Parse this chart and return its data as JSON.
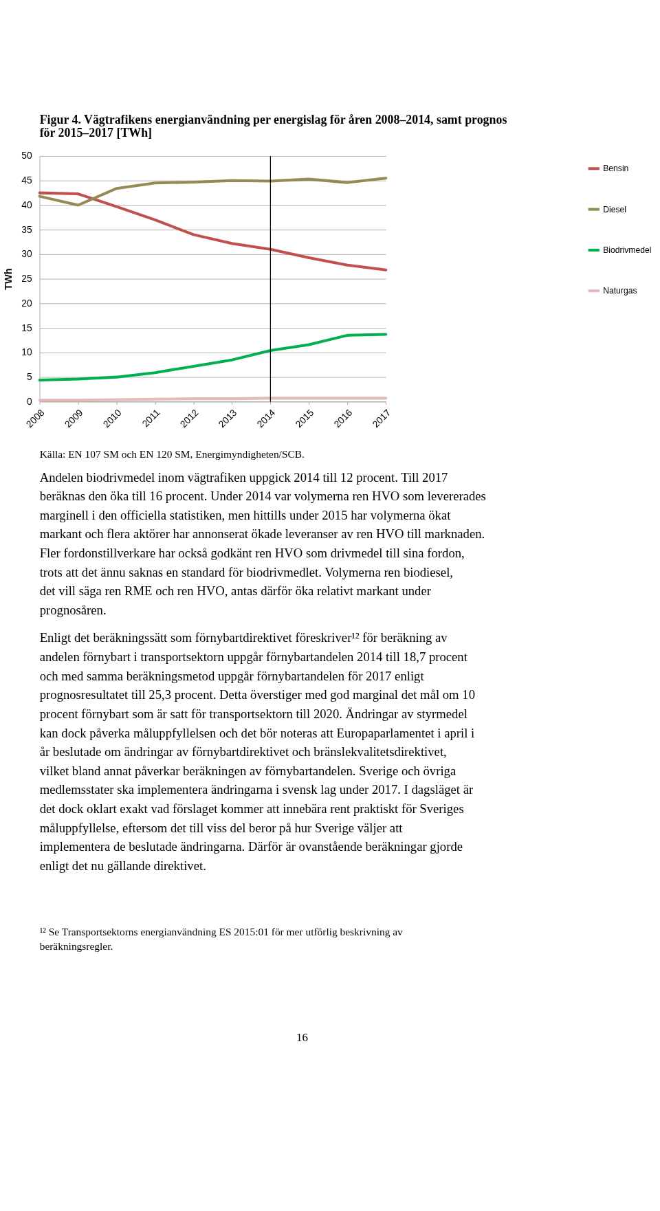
{
  "chart_data": {
    "type": "line",
    "title": "Figur 4. Vägtrafikens energianvändning per energislag för åren 2008–2014, samt prognos för 2015–2017 [TWh]",
    "ylabel": "TWh",
    "categories": [
      "2008",
      "2009",
      "2010",
      "2011",
      "2012",
      "2013",
      "2014",
      "2015",
      "2016",
      "2017"
    ],
    "series": [
      {
        "name": "Bensin",
        "color": "#c0504d",
        "values": [
          42.5,
          42.3,
          39.7,
          37.0,
          34.0,
          32.2,
          31.0,
          29.3,
          27.8,
          26.8
        ]
      },
      {
        "name": "Diesel",
        "color": "#948a54",
        "values": [
          41.8,
          40.0,
          43.4,
          44.5,
          44.7,
          45.0,
          44.9,
          45.3,
          44.6,
          45.5
        ]
      },
      {
        "name": "Biodrivmedel",
        "color": "#00b050",
        "values": [
          4.4,
          4.6,
          5.0,
          5.9,
          7.2,
          8.5,
          10.4,
          11.6,
          13.5,
          13.7
        ]
      },
      {
        "name": "Naturgas",
        "color": "#e6b9b8",
        "values": [
          0.3,
          0.3,
          0.4,
          0.5,
          0.6,
          0.6,
          0.7,
          0.7,
          0.7,
          0.7
        ]
      }
    ],
    "ylim": [
      0,
      50
    ],
    "yticks": [
      0,
      5,
      10,
      15,
      20,
      25,
      30,
      35,
      40,
      45,
      50
    ],
    "grid": "y",
    "legend": "right",
    "marker": "none",
    "line_style": "solid",
    "ref_lines": [
      {
        "axis": "x",
        "value": "2014",
        "color": "#000000"
      }
    ],
    "annotations": [
      "Källa: EN 107 SM och EN 120 SM, Energimyndigheten/SCB.",
      "Andelen biodrivmedel inom vägtrafiken uppgick 2014 till 12 procent. Till 2017 beräknas den öka till 16 procent. Under 2014 var volymerna ren HVO som levererades marginell i den officiella statistiken, men hittills under 2015 har volymerna ökat markant och flera aktörer har annonserat ökade leveranser av ren HVO till marknaden. Fler fordonstillverkare har också godkänt ren HVO som drivmedel till sina fordon, trots att det ännu saknas en standard för biodrivmedlet. Volymerna ren biodiesel, det vill säga ren RME och ren HVO, antas därför öka relativt markant under prognosåren.",
      "Enligt det beräkningssätt som förnybartdirektivet föreskriver¹² för beräkning av andelen förnybart i transportsektorn uppgår förnybartandelen 2014 till 18,7 procent och med samma beräkningsmetod uppgår förnybartandelen för 2017 enligt prognosresultatet till 25,3 procent. Detta överstiger med god marginal det mål om 10 procent förnybart som är satt för transportsektorn till 2020. Ändringar av styrmedel kan dock påverka måluppfyllelsen och det bör noteras att Europaparlamentet i april i år beslutade om ändringar av förnybartdirektivet och bränslekvalitetsdirektivet, vilket bland annat påverkar beräkningen av förnybartandelen. Sverige och övriga medlemsstater ska implementera ändringarna i svensk lag under 2017. I dagsläget är det dock oklart exakt vad förslaget kommer att innebära rent praktiskt för Sveriges måluppfyllelse, eftersom det till viss del beror på hur Sverige väljer att implementera de beslutade ändringarna. Därför är ovanstående beräkningar gjorde enligt det nu gällande direktivet.",
      "¹² Se Transportsektorns energianvändning ES 2015:01 för mer utförlig beskrivning av beräkningsregler.",
      "16"
    ]
  }
}
